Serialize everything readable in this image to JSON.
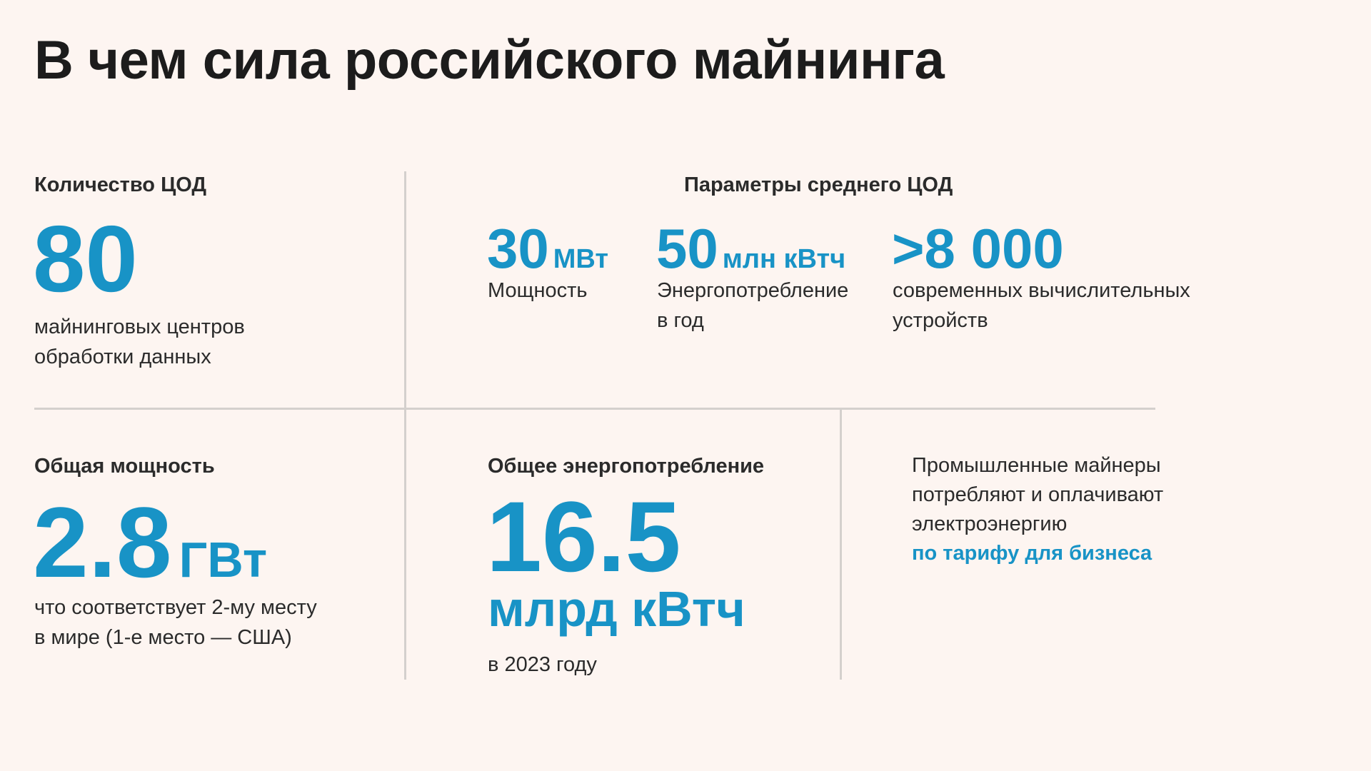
{
  "title": "В чем сила российского майнинга",
  "count_block": {
    "label": "Количество ЦОД",
    "value": "80",
    "desc_line1": "майнинговых центров",
    "desc_line2": "обработки данных"
  },
  "avg_block": {
    "label": "Параметры среднего ЦОД",
    "items": [
      {
        "value": "30",
        "unit": "МВт",
        "desc_line1": "Мощность",
        "desc_line2": ""
      },
      {
        "value": "50",
        "unit": "млн кВтч",
        "desc_line1": "Энергопотребление",
        "desc_line2": "в год"
      },
      {
        "value": ">8 000",
        "unit": "",
        "desc_line1": "современных вычислительных",
        "desc_line2": "устройств"
      }
    ]
  },
  "power_block": {
    "label": "Общая мощность",
    "value": "2.8",
    "unit": "ГВт",
    "desc_line1": "что соответствует 2-му месту",
    "desc_line2": "в мире (1-е место — США)"
  },
  "energy_block": {
    "label": "Общее энергопотребление",
    "value": "16.5",
    "unit": "млрд кВтч",
    "desc": "в 2023 году"
  },
  "note_block": {
    "line1": "Промышленные майнеры",
    "line2": "потребляют и оплачивают",
    "line3": "электроэнергию",
    "highlight": "по тарифу для бизнеса"
  },
  "colors": {
    "accent": "#1893c6",
    "background": "#fdf5f1",
    "text": "#2b2b2b",
    "divider": "#d4d0cd"
  }
}
